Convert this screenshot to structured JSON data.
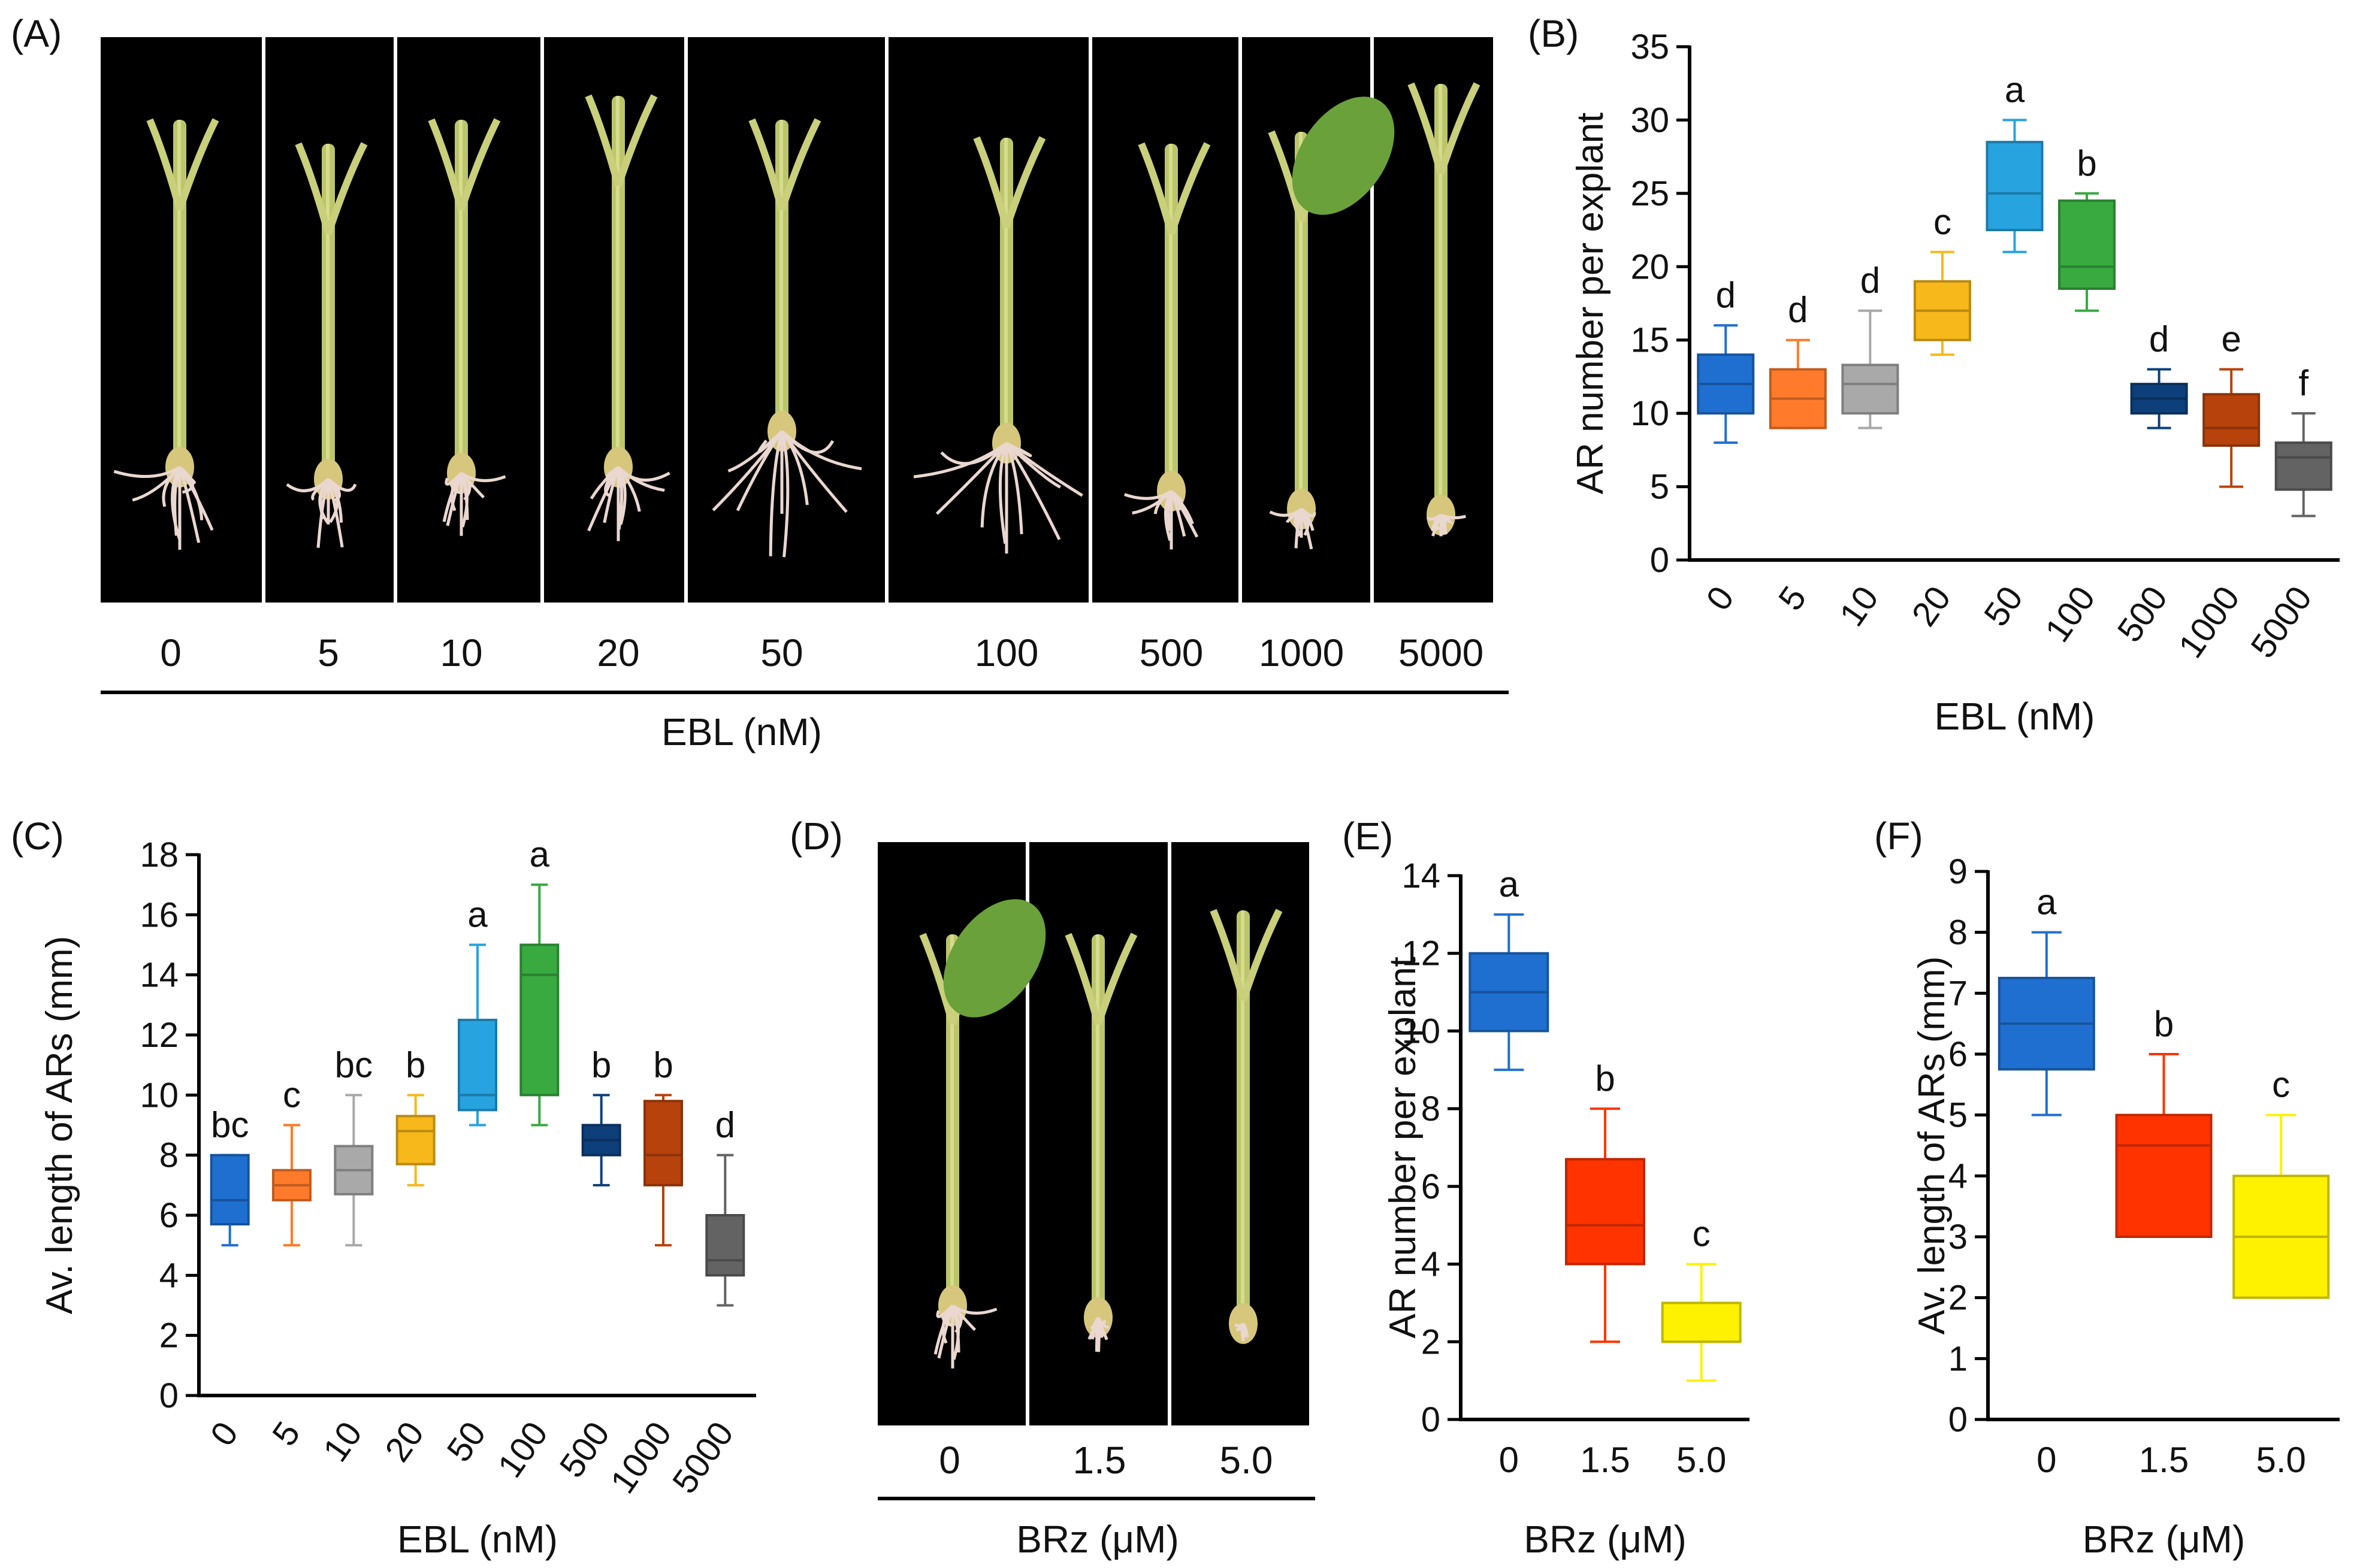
{
  "colors": {
    "c0": "#1f6fd0",
    "c5": "#ff7a2a",
    "c10": "#a9a9a9",
    "c20": "#f7b81b",
    "c50": "#27a3e0",
    "c100": "#38aa40",
    "c500": "#0d3f7a",
    "c1000": "#b8420c",
    "c5000": "#636363",
    "brz0": "#1f6fd0",
    "brz15": "#ff3300",
    "brz50": "#fff200",
    "background": "#000000"
  },
  "panelA": {
    "label": "(A)",
    "conditions": [
      "0",
      "5",
      "10",
      "20",
      "50",
      "100",
      "500",
      "1000",
      "5000"
    ],
    "axis_label": "EBL (nM)"
  },
  "panelD": {
    "label": "(D)",
    "conditions": [
      "0",
      "1.5",
      "5.0"
    ],
    "axis_label": "BRz (μM)"
  },
  "chart_data": [
    {
      "id": "B",
      "panel_label": "(B)",
      "type": "box",
      "title": "",
      "xlabel": "EBL (nM)",
      "ylabel": "AR number per explant",
      "ylim": [
        0,
        35
      ],
      "yticks": [
        0,
        5,
        10,
        15,
        20,
        25,
        30,
        35
      ],
      "tick_rotation": "rotated",
      "categories": [
        "0",
        "5",
        "10",
        "20",
        "50",
        "100",
        "500",
        "1000",
        "5000"
      ],
      "series": [
        {
          "name": "0",
          "min": 8,
          "q1": 10,
          "median": 12,
          "q3": 14,
          "max": 16,
          "letter": "d",
          "color": "#1f6fd0"
        },
        {
          "name": "5",
          "min": 9,
          "q1": 9,
          "median": 11,
          "q3": 13,
          "max": 15,
          "letter": "d",
          "color": "#ff7a2a"
        },
        {
          "name": "10",
          "min": 9,
          "q1": 10,
          "median": 12,
          "q3": 13.3,
          "max": 17,
          "letter": "d",
          "color": "#a9a9a9"
        },
        {
          "name": "20",
          "min": 14,
          "q1": 15,
          "median": 17,
          "q3": 19,
          "max": 21,
          "letter": "c",
          "color": "#f7b81b"
        },
        {
          "name": "50",
          "min": 21,
          "q1": 22.5,
          "median": 25,
          "q3": 28.5,
          "max": 30,
          "letter": "a",
          "color": "#27a3e0"
        },
        {
          "name": "100",
          "min": 17,
          "q1": 18.5,
          "median": 20,
          "q3": 24.5,
          "max": 25,
          "letter": "b",
          "color": "#38aa40"
        },
        {
          "name": "500",
          "min": 9,
          "q1": 10,
          "median": 11,
          "q3": 12,
          "max": 13,
          "letter": "d",
          "color": "#0d3f7a"
        },
        {
          "name": "1000",
          "min": 5,
          "q1": 7.8,
          "median": 9,
          "q3": 11.3,
          "max": 13,
          "letter": "e",
          "color": "#b8420c"
        },
        {
          "name": "5000",
          "min": 3,
          "q1": 4.8,
          "median": 7,
          "q3": 8,
          "max": 10,
          "letter": "f",
          "color": "#636363"
        }
      ]
    },
    {
      "id": "C",
      "panel_label": "(C)",
      "type": "box",
      "title": "",
      "xlabel": "EBL (nM)",
      "ylabel": "Av. length of ARs (mm)",
      "ylim": [
        0,
        18
      ],
      "yticks": [
        0,
        2,
        4,
        6,
        8,
        10,
        12,
        14,
        16,
        18
      ],
      "tick_rotation": "rotated",
      "categories": [
        "0",
        "5",
        "10",
        "20",
        "50",
        "100",
        "500",
        "1000",
        "5000"
      ],
      "series": [
        {
          "name": "0",
          "min": 5,
          "q1": 5.7,
          "median": 6.5,
          "q3": 8,
          "max": 8,
          "letter": "bc",
          "color": "#1f6fd0"
        },
        {
          "name": "5",
          "min": 5,
          "q1": 6.5,
          "median": 7,
          "q3": 7.5,
          "max": 9,
          "letter": "c",
          "color": "#ff7a2a"
        },
        {
          "name": "10",
          "min": 5,
          "q1": 6.7,
          "median": 7.5,
          "q3": 8.3,
          "max": 10,
          "letter": "bc",
          "color": "#a9a9a9"
        },
        {
          "name": "20",
          "min": 7,
          "q1": 7.7,
          "median": 8.8,
          "q3": 9.3,
          "max": 10,
          "letter": "b",
          "color": "#f7b81b"
        },
        {
          "name": "50",
          "min": 9,
          "q1": 9.5,
          "median": 10,
          "q3": 12.5,
          "max": 15,
          "letter": "a",
          "color": "#27a3e0"
        },
        {
          "name": "100",
          "min": 9,
          "q1": 10,
          "median": 14,
          "q3": 15,
          "max": 17,
          "letter": "a",
          "color": "#38aa40"
        },
        {
          "name": "500",
          "min": 7,
          "q1": 8,
          "median": 8.5,
          "q3": 9,
          "max": 10,
          "letter": "b",
          "color": "#0d3f7a"
        },
        {
          "name": "1000",
          "min": 5,
          "q1": 7,
          "median": 8,
          "q3": 9.8,
          "max": 10,
          "letter": "b",
          "color": "#b8420c"
        },
        {
          "name": "5000",
          "min": 3,
          "q1": 4,
          "median": 4.5,
          "q3": 6,
          "max": 8,
          "letter": "d",
          "color": "#636363"
        }
      ]
    },
    {
      "id": "E",
      "panel_label": "(E)",
      "type": "box",
      "title": "",
      "xlabel": "BRz (μM)",
      "ylabel": "AR number per explant",
      "ylim": [
        0,
        14
      ],
      "yticks": [
        0,
        2,
        4,
        6,
        8,
        10,
        12,
        14
      ],
      "tick_rotation": "horizontal",
      "categories": [
        "0",
        "1.5",
        "5.0"
      ],
      "series": [
        {
          "name": "0",
          "min": 9,
          "q1": 10,
          "median": 11,
          "q3": 12,
          "max": 13,
          "letter": "a",
          "color": "#1f6fd0"
        },
        {
          "name": "1.5",
          "min": 2,
          "q1": 4,
          "median": 5,
          "q3": 6.7,
          "max": 8,
          "letter": "b",
          "color": "#ff3300"
        },
        {
          "name": "5.0",
          "min": 1,
          "q1": 2,
          "median": 2,
          "q3": 3,
          "max": 4,
          "letter": "c",
          "color": "#fff200"
        }
      ]
    },
    {
      "id": "F",
      "panel_label": "(F)",
      "type": "box",
      "title": "",
      "xlabel": "BRz (μM)",
      "ylabel": "Av. length of ARs (mm)",
      "ylim": [
        0,
        9
      ],
      "yticks": [
        0,
        1,
        2,
        3,
        4,
        5,
        6,
        7,
        8,
        9
      ],
      "tick_rotation": "horizontal",
      "categories": [
        "0",
        "1.5",
        "5.0"
      ],
      "series": [
        {
          "name": "0",
          "min": 5,
          "q1": 5.75,
          "median": 6.5,
          "q3": 7.25,
          "max": 8,
          "letter": "a",
          "color": "#1f6fd0"
        },
        {
          "name": "1.5",
          "min": 3,
          "q1": 3,
          "median": 4.5,
          "q3": 5,
          "max": 6,
          "letter": "b",
          "color": "#ff3300"
        },
        {
          "name": "5.0",
          "min": 2,
          "q1": 2,
          "median": 3,
          "q3": 4,
          "max": 5,
          "letter": "c",
          "color": "#fff200"
        }
      ]
    }
  ]
}
